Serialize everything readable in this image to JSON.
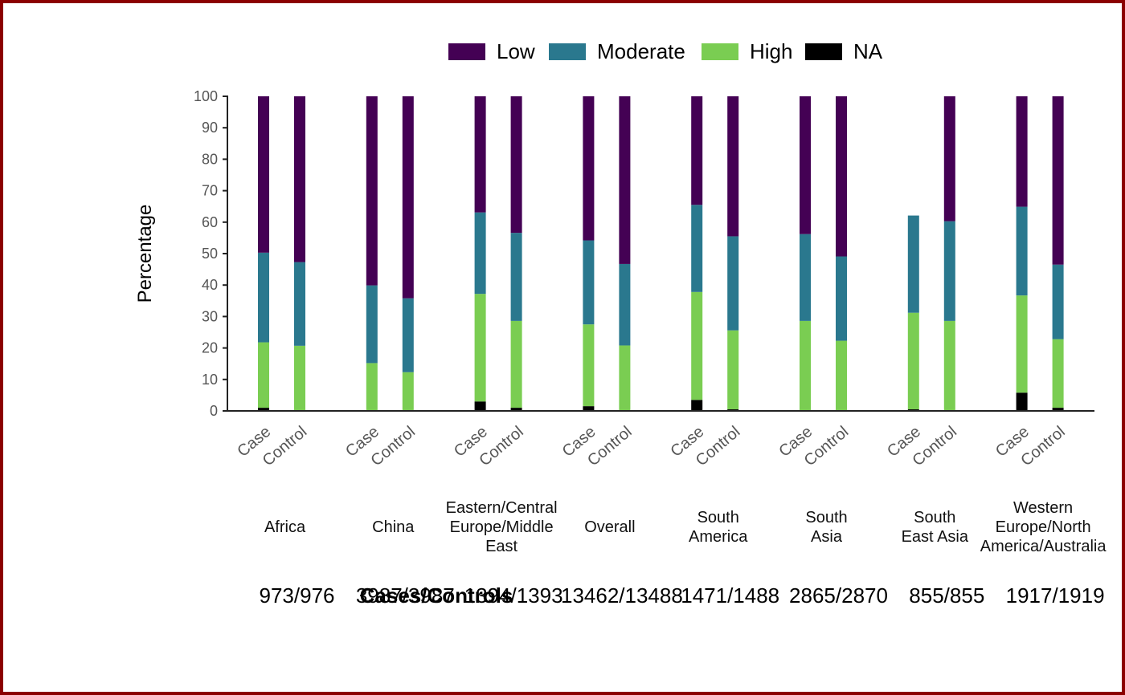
{
  "chart_data": {
    "type": "bar",
    "stacked": true,
    "ylabel": "Percentage",
    "ylim": [
      0,
      100
    ],
    "yticks": [
      "0",
      "10",
      "20",
      "30",
      "40",
      "50",
      "60",
      "70",
      "80",
      "90",
      "100"
    ],
    "legend_position": "top",
    "groups": [
      "Case",
      "Control"
    ],
    "regions": [
      {
        "lines": [
          "Africa"
        ],
        "count": "973/976"
      },
      {
        "lines": [
          "China"
        ],
        "count": "3987/3987"
      },
      {
        "lines": [
          "Eastern/Central",
          "Europe/Middle",
          "East"
        ],
        "count": "1394/1393"
      },
      {
        "lines": [
          "Overall"
        ],
        "count": "13462/13488"
      },
      {
        "lines": [
          "South",
          "America"
        ],
        "count": "1471/1488"
      },
      {
        "lines": [
          "South",
          "Asia"
        ],
        "count": "2865/2870"
      },
      {
        "lines": [
          "South",
          "East Asia"
        ],
        "count": "855/855"
      },
      {
        "lines": [
          "Western",
          "Europe/North",
          "America/Australia"
        ],
        "count": "1917/1919"
      }
    ],
    "counts_title": "Cases/Controls",
    "series": [
      {
        "name": "NA",
        "color": "#000000",
        "case": [
          1,
          0,
          3,
          1.5,
          3.5,
          0,
          0.5,
          5.8
        ],
        "control": [
          0,
          0,
          1,
          0,
          0.5,
          0,
          0,
          1
        ]
      },
      {
        "name": "High",
        "color": "#7acd52",
        "case": [
          20.8,
          15.2,
          34.2,
          26,
          34.3,
          28.6,
          30.7,
          30.9
        ],
        "control": [
          20.7,
          12.3,
          27.6,
          20.8,
          25.1,
          22.3,
          28.6,
          21.8
        ]
      },
      {
        "name": "Moderate",
        "color": "#2a788e",
        "case": [
          28.5,
          24.7,
          25.9,
          26.7,
          27.7,
          27.6,
          30.9,
          28.2
        ],
        "control": [
          26.6,
          23.5,
          28,
          25.9,
          29.9,
          26.8,
          31.7,
          23.7
        ]
      },
      {
        "name": "Low",
        "color": "#440154",
        "case": [
          49.7,
          60.1,
          36.9,
          45.8,
          34.5,
          43.8,
          0,
          35.1
        ],
        "control": [
          52.7,
          64.2,
          43.4,
          53.3,
          44.5,
          50.9,
          39.7,
          53.5
        ]
      }
    ],
    "legend_order": [
      "Low",
      "Moderate",
      "High",
      "NA"
    ]
  }
}
